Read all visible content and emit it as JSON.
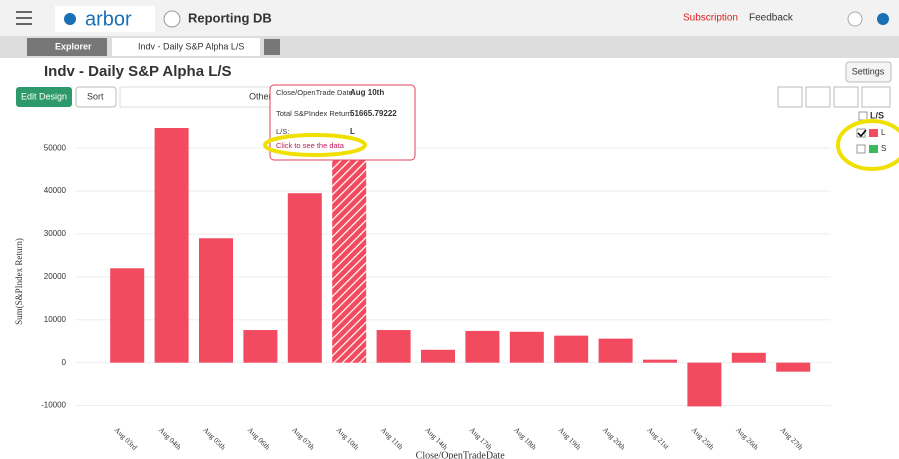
{
  "ui": {
    "logo": "arbor",
    "db_name": "Reporting DB",
    "subscription": "Subscription",
    "feedback": "Feedback",
    "explorer_tab": "Explorer",
    "report_tab": "Indv - Daily S&P Alpha L/S",
    "report_title": "Indv - Daily S&P Alpha L/S",
    "settings": "Settings",
    "edit_design": "Edit Design",
    "sort": "Sort",
    "other": "Other",
    "tooltip": {
      "date_label": "Close/OpenTrade Date:",
      "return_label": "Total S&PIndex Return:",
      "ls_label": "L/S:",
      "link": "Click to see the data"
    }
  },
  "chart_data": {
    "type": "bar",
    "categories": [
      "Aug 03rd",
      "Aug 04th",
      "Aug 05th",
      "Aug 06th",
      "Aug 07th",
      "Aug 10th",
      "Aug 11th",
      "Aug 14th",
      "Aug 17th",
      "Aug 18th",
      "Aug 19th",
      "Aug 20th",
      "Aug 21st",
      "Aug 25th",
      "Aug 26th",
      "Aug 27th"
    ],
    "series": [
      {
        "name": "L",
        "color": "#f24a5e",
        "values": [
          22000,
          54700,
          29000,
          7600,
          39500,
          51665.79222,
          7600,
          3000,
          7400,
          7200,
          6300,
          5600,
          700,
          -10200,
          2300,
          -2100
        ]
      }
    ],
    "legend_title": "L/S",
    "legend_items": [
      {
        "name": "L",
        "color": "#f24a5e",
        "checked": true
      },
      {
        "name": "S",
        "color": "#3cb95a",
        "checked": false
      }
    ],
    "x_label": "Close/OpenTradeDate",
    "y_label": "Sum(S&PIndex Return)",
    "ylim": [
      -15000,
      57500
    ],
    "yticks": [
      -10000,
      0,
      10000,
      20000,
      30000,
      40000,
      50000
    ],
    "grid": true
  }
}
